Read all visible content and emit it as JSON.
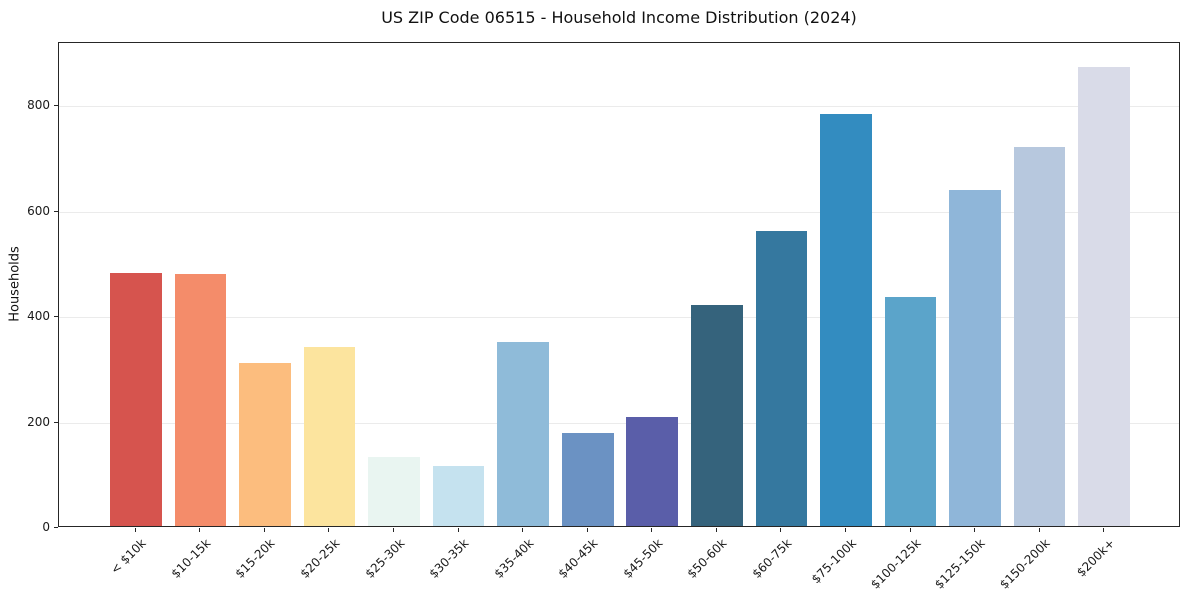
{
  "chart_data": {
    "type": "bar",
    "title": "US ZIP Code 06515 - Household Income Distribution (2024)",
    "ylabel": "Households",
    "xlabel": "",
    "categories": [
      "< $10k",
      "$10-15k",
      "$15-20k",
      "$20-25k",
      "$25-30k",
      "$30-35k",
      "$35-40k",
      "$40-45k",
      "$45-50k",
      "$50-60k",
      "$60-75k",
      "$75-100k",
      "$100-125k",
      "$125-150k",
      "$150-200k",
      "$200k+"
    ],
    "values": [
      480,
      478,
      310,
      340,
      131,
      113,
      350,
      176,
      206,
      420,
      560,
      782,
      434,
      638,
      719,
      871
    ],
    "bar_colors": [
      "#d6544e",
      "#f48c6a",
      "#fcbd7e",
      "#fce49e",
      "#e9f5f1",
      "#c5e2ef",
      "#8fbbd9",
      "#6b92c3",
      "#5a5ea9",
      "#35637c",
      "#35789f",
      "#338cc0",
      "#5ba4ca",
      "#8fb6d9",
      "#b7c8de",
      "#d9dbe8"
    ],
    "yticks": [
      0,
      200,
      400,
      600,
      800
    ],
    "ylim": [
      0,
      920
    ],
    "grid": "horizontal",
    "grid_color": "#ebebeb",
    "spine_color": "#262626",
    "background": "#ffffff",
    "legend": "none",
    "xtick_rotation_deg": 45
  }
}
